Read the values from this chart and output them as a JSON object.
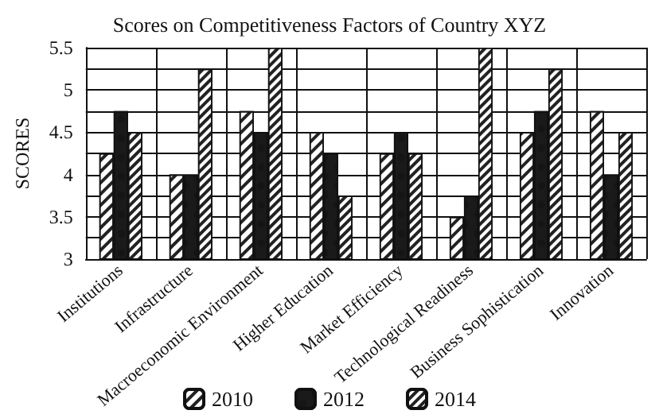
{
  "chart_data": {
    "type": "bar",
    "title": "Scores on Competitiveness Factors of Country XYZ",
    "ylabel": "SCORES",
    "categories": [
      "Institutions",
      "Infrastructure",
      "Macroeconomic Environment",
      "Higher Education",
      "Market Efficiency",
      "Technological Readiness",
      "Business Sophistication",
      "Innovation"
    ],
    "series": [
      {
        "name": "2010",
        "color": "#ffffff",
        "values": [
          4.25,
          4,
          4.75,
          4.5,
          4.25,
          3.5,
          4.5,
          4.75
        ]
      },
      {
        "name": "2012",
        "color": "#1a1a1a",
        "values": [
          4.75,
          4,
          4.5,
          4.25,
          4.5,
          3.75,
          4.75,
          4
        ]
      },
      {
        "name": "2014",
        "color": "#ffffff",
        "values": [
          4.5,
          5.25,
          5.5,
          3.75,
          4.25,
          5.5,
          5.25,
          4.5
        ]
      }
    ],
    "ylim": [
      3,
      5.5
    ],
    "yticks": [
      3,
      {
        "value": 3.25,
        "label": null
      },
      3.5,
      {
        "value": 3.75,
        "label": null
      },
      4,
      {
        "value": 4.25,
        "label": null
      },
      4.5,
      {
        "value": 4.75,
        "label": null
      },
      5,
      {
        "value": 5.25,
        "label": null
      },
      5.5
    ],
    "grid": true,
    "legend": "bottom"
  }
}
